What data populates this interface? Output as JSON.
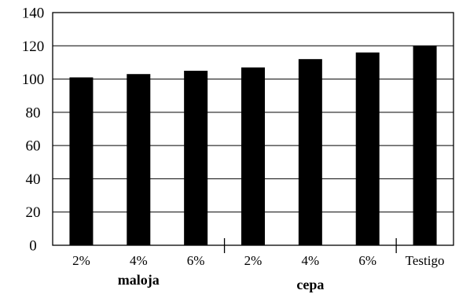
{
  "chart_data": {
    "type": "bar",
    "categories": [
      "2%",
      "4%",
      "6%",
      "2%",
      "4%",
      "6%",
      "Testigo"
    ],
    "values": [
      101,
      103,
      105,
      107,
      112,
      116,
      120
    ],
    "groups": [
      {
        "label": "maloja",
        "start": 0,
        "end": 2
      },
      {
        "label": "cepa",
        "start": 3,
        "end": 5
      }
    ],
    "title": "",
    "xlabel": "",
    "ylabel": "",
    "ylim": [
      0,
      140
    ],
    "yticks": [
      0,
      20,
      40,
      60,
      80,
      100,
      120,
      140
    ],
    "grid": true,
    "bar_color": "#000000"
  }
}
